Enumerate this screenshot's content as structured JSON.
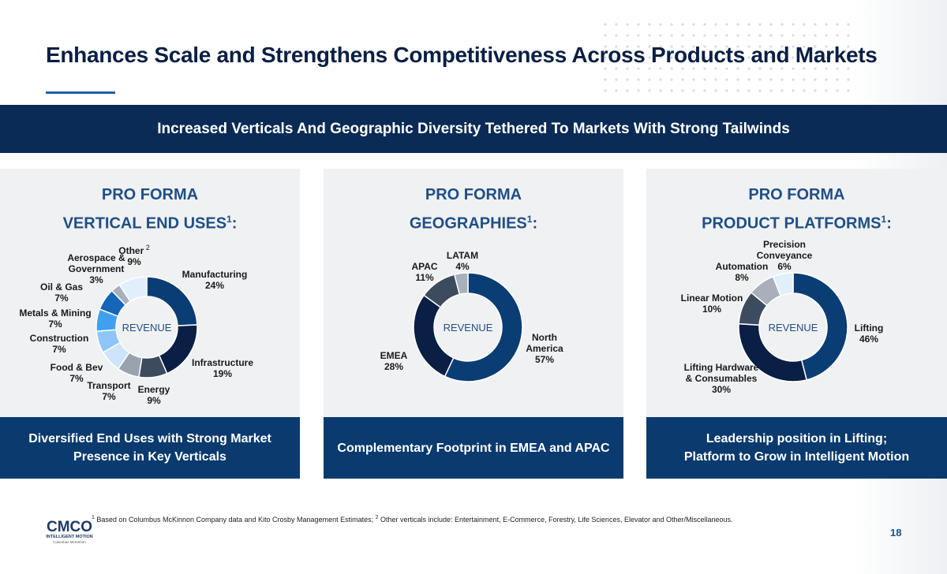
{
  "title": "Enhances Scale and Strengthens Competitiveness Across Products and Markets",
  "banner": "Increased Verticals And Geographic Diversity Tethered To Markets With Strong Tailwinds",
  "center_label": "REVENUE",
  "colors": {
    "navy": "#0a2b55",
    "panel_blue": "#0a3a6e",
    "heading_blue": "#1f4f86"
  },
  "panels": [
    {
      "head_line1": "PRO FORMA",
      "head_line2": "VERTICAL END USES",
      "sup": "1",
      "colon": ":",
      "footer_line1": "Diversified End Uses with Strong Market",
      "footer_line2": "Presence in Key Verticals"
    },
    {
      "head_line1": "PRO FORMA",
      "head_line2": "GEOGRAPHIES",
      "sup": "1",
      "colon": ":",
      "footer_line1": "Complementary Footprint in EMEA and APAC",
      "footer_line2": ""
    },
    {
      "head_line1": "PRO FORMA",
      "head_line2": "PRODUCT PLATFORMS",
      "sup": "1",
      "colon": ":",
      "footer_line1": "Leadership position in Lifting;",
      "footer_line2": "Platform to Grow in Intelligent Motion"
    }
  ],
  "chart_data": [
    {
      "type": "pie",
      "title": "PRO FORMA VERTICAL END USES",
      "slices": [
        {
          "label": "Manufacturing",
          "value": 24,
          "pct": "24%",
          "color": "#0b3d75"
        },
        {
          "label": "Infrastructure",
          "value": 19,
          "pct": "19%",
          "color": "#0a1f44"
        },
        {
          "label": "Energy",
          "value": 9,
          "pct": "9%",
          "color": "#3c4b5e"
        },
        {
          "label": "Transport",
          "value": 7,
          "pct": "7%",
          "color": "#9aa3ad"
        },
        {
          "label": "Food & Bev",
          "value": 7,
          "pct": "7%",
          "color": "#cde4fb"
        },
        {
          "label": "Construction",
          "value": 7,
          "pct": "7%",
          "color": "#8ec6f7"
        },
        {
          "label": "Metals & Mining",
          "value": 7,
          "pct": "7%",
          "color": "#3fa0f2"
        },
        {
          "label": "Oil & Gas",
          "value": 7,
          "pct": "7%",
          "color": "#1565b8"
        },
        {
          "label": "Aerospace & Government",
          "value": 3,
          "pct": "3%",
          "color": "#a7b0bb"
        },
        {
          "label": "Other",
          "value": 9,
          "pct": "9%",
          "color": "#e1eefb",
          "note": "2"
        }
      ]
    },
    {
      "type": "pie",
      "title": "PRO FORMA GEOGRAPHIES",
      "slices": [
        {
          "label": "North America",
          "value": 57,
          "pct": "57%",
          "color": "#0b3d75"
        },
        {
          "label": "EMEA",
          "value": 28,
          "pct": "28%",
          "color": "#0a1f44"
        },
        {
          "label": "APAC",
          "value": 11,
          "pct": "11%",
          "color": "#3c4b5e"
        },
        {
          "label": "LATAM",
          "value": 4,
          "pct": "4%",
          "color": "#a7b0bb"
        }
      ]
    },
    {
      "type": "pie",
      "title": "PRO FORMA PRODUCT PLATFORMS",
      "slices": [
        {
          "label": "Lifting",
          "value": 46,
          "pct": "46%",
          "color": "#0b3d75"
        },
        {
          "label": "Lifting Hardware & Consumables",
          "value": 30,
          "pct": "30%",
          "color": "#0a1f44"
        },
        {
          "label": "Linear Motion",
          "value": 10,
          "pct": "10%",
          "color": "#3c4b5e"
        },
        {
          "label": "Automation",
          "value": 8,
          "pct": "8%",
          "color": "#a7b0bb"
        },
        {
          "label": "Precision Conveyance",
          "value": 6,
          "pct": "6%",
          "color": "#e1eefb"
        }
      ]
    }
  ],
  "footnote": {
    "m1": "1",
    "t1": " Based on Columbus McKinnon Company data and Kito Crosby Management Estimates; ",
    "m2": "2",
    "t2": " Other verticals include: Entertainment, E-Commerce, Forestry, Life Sciences, Elevator and Other/Miscellaneous."
  },
  "logo": {
    "mark": "CMCO",
    "line1": "INTELLIGENT MOTION",
    "line2": "Columbus McKinnon"
  },
  "page_number": "18"
}
